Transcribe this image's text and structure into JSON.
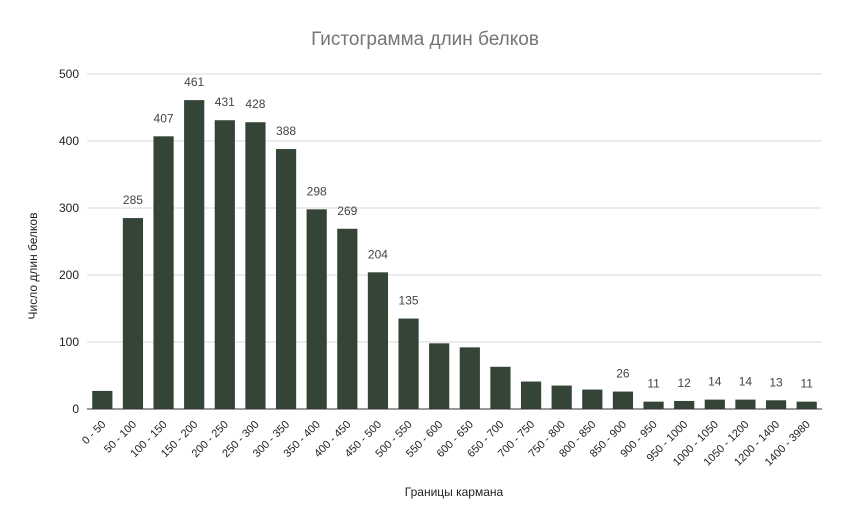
{
  "chart_data": {
    "type": "bar",
    "title": "Гистограмма длин белков",
    "xlabel": "Границы кармана",
    "ylabel": "Число длин белков",
    "ylim": [
      0,
      500
    ],
    "yticks": [
      0,
      100,
      200,
      300,
      400,
      500
    ],
    "grid": true,
    "bar_color": "#344537",
    "categories": [
      "0 - 50",
      "50 - 100",
      "100 - 150",
      "150 - 200",
      "200 - 250",
      "250 - 300",
      "300 - 350",
      "350 - 400",
      "400 - 450",
      "450 - 500",
      "500 - 550",
      "550 - 600",
      "600 - 650",
      "650 - 700",
      "700 - 750",
      "750 - 800",
      "800 - 850",
      "850 - 900",
      "900 - 950",
      "950 - 1000",
      "1000 - 1050",
      "1050 - 1200",
      "1200 - 1400",
      "1400 - 3980"
    ],
    "values": [
      27,
      285,
      407,
      461,
      431,
      428,
      388,
      298,
      269,
      204,
      135,
      98,
      92,
      63,
      41,
      35,
      29,
      26,
      11,
      12,
      14,
      14,
      13,
      11
    ],
    "data_labels": [
      "",
      "285",
      "407",
      "461",
      "431",
      "428",
      "388",
      "298",
      "269",
      "204",
      "135",
      "",
      "",
      "",
      "",
      "",
      "",
      "26",
      "11",
      "12",
      "14",
      "14",
      "13",
      "11"
    ]
  }
}
